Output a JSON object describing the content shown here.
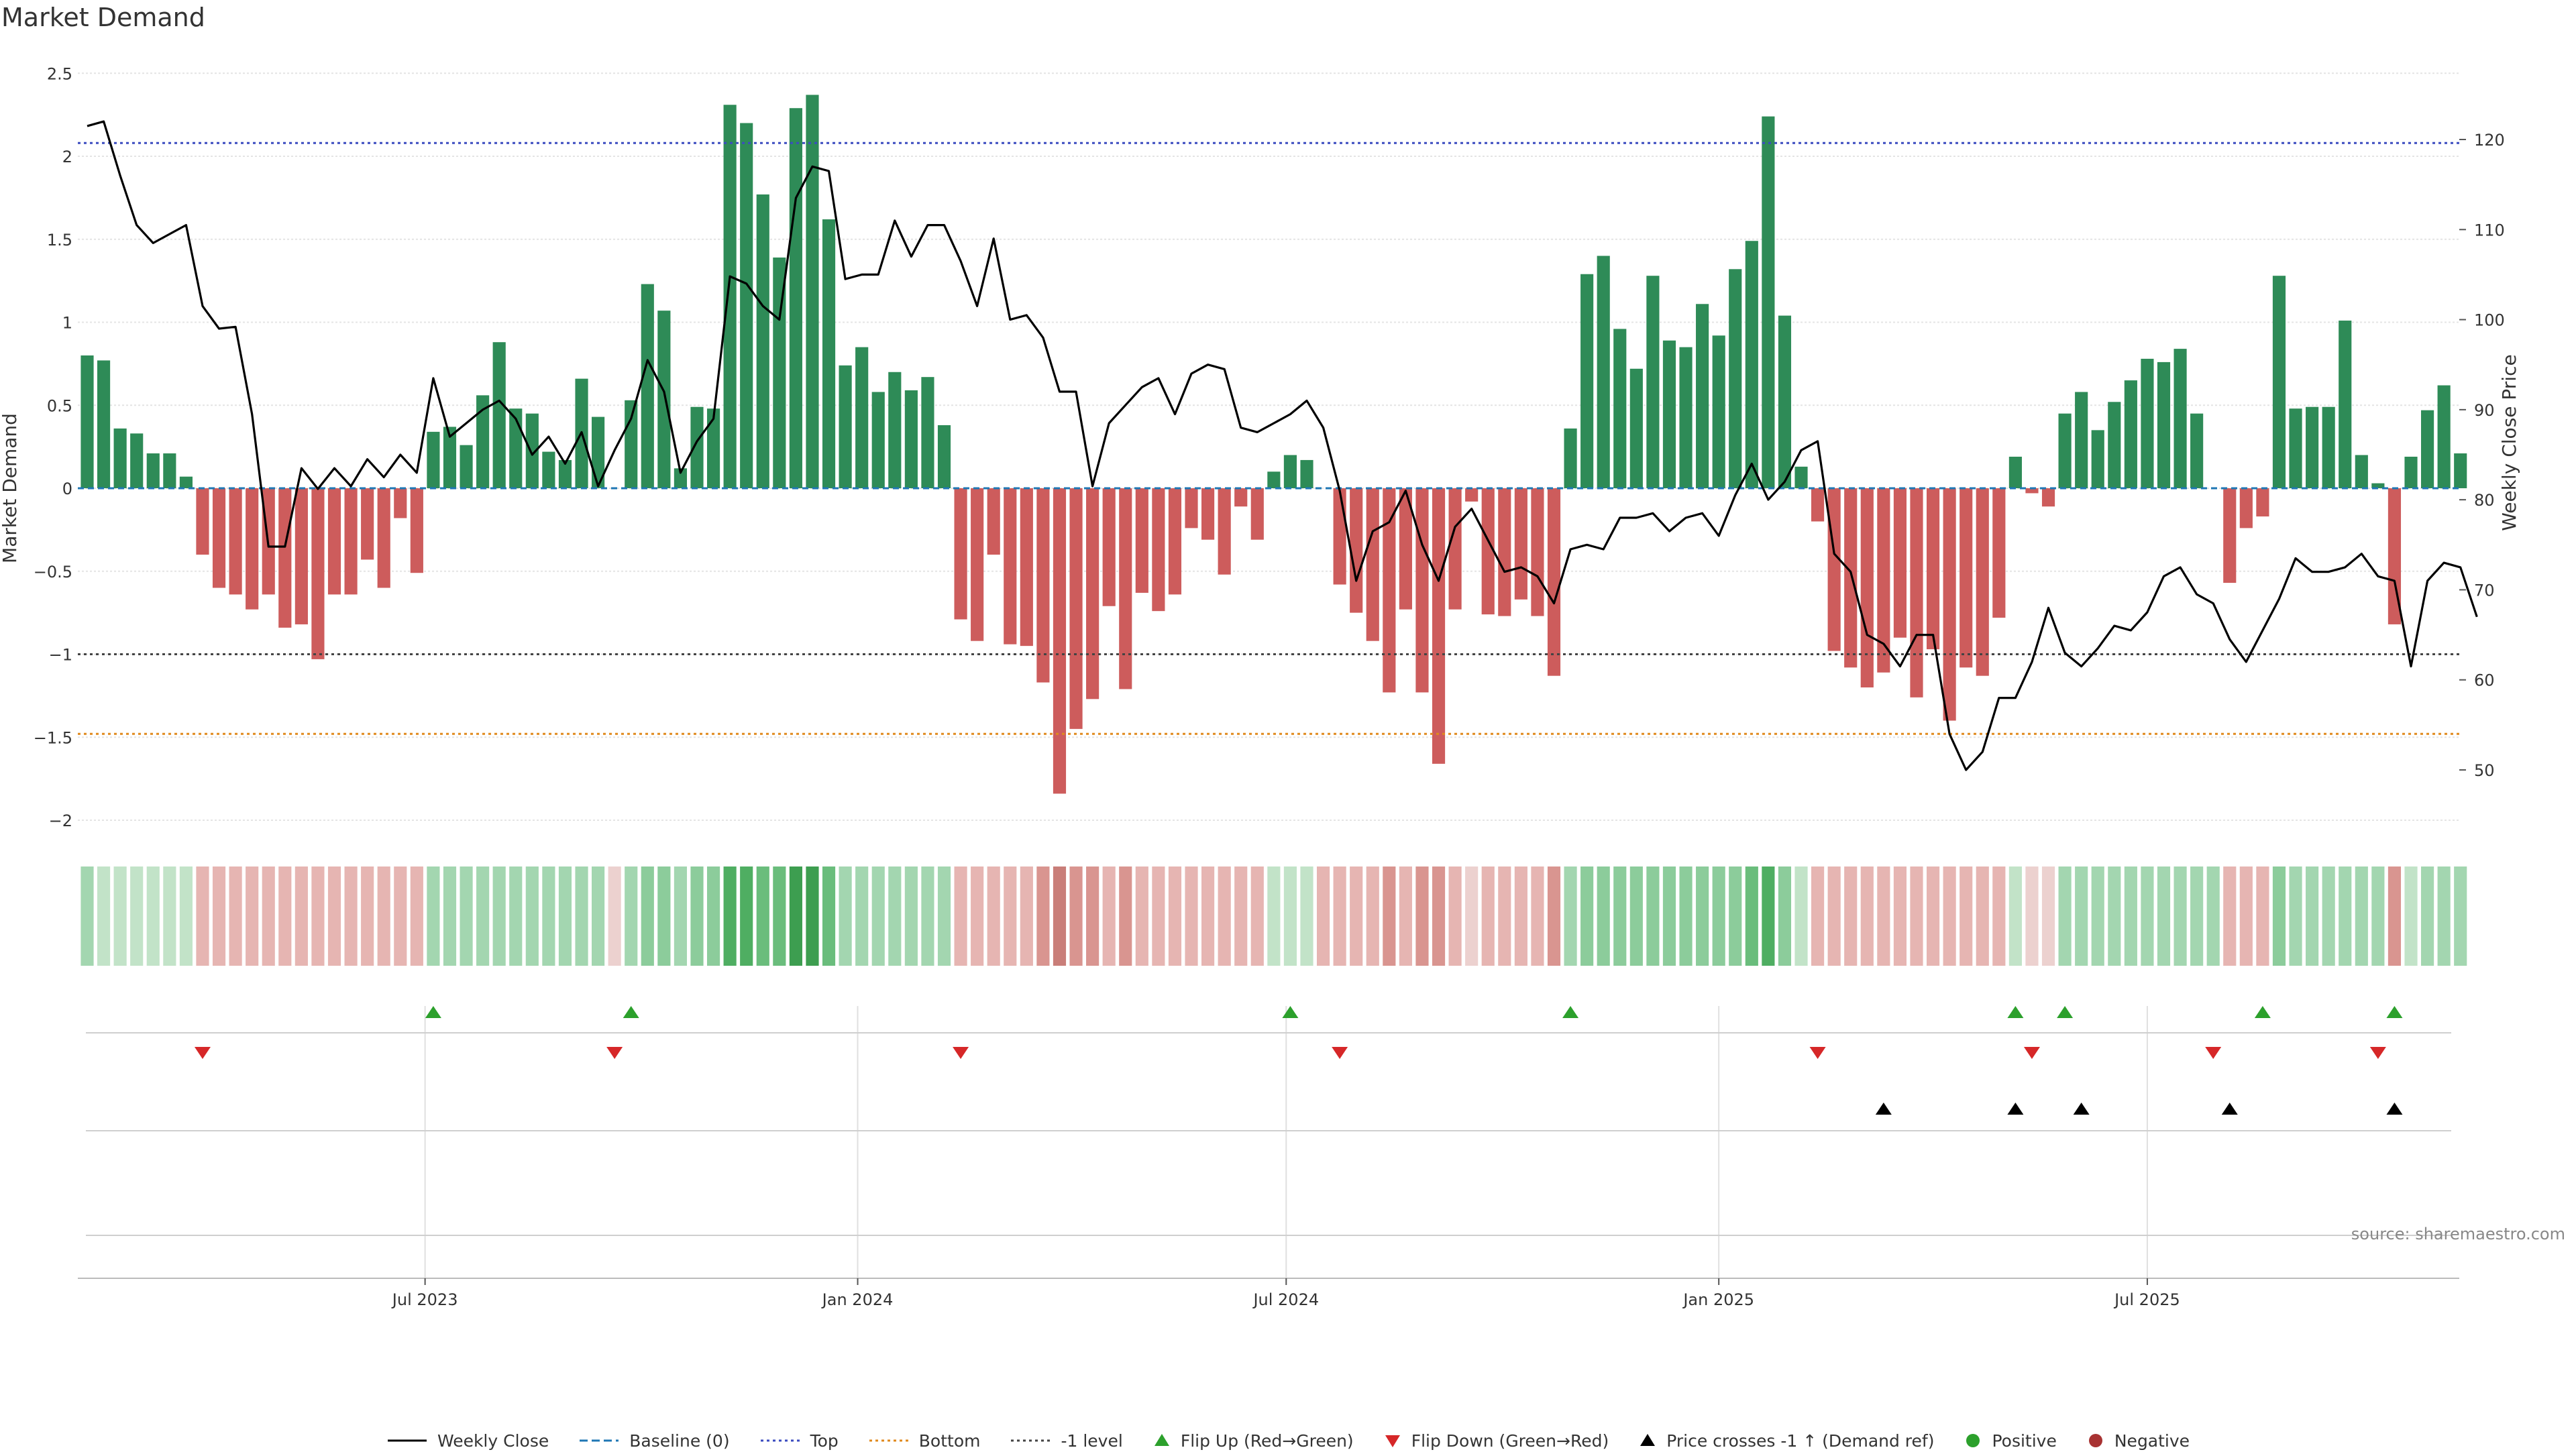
{
  "page": {
    "title": "Market Demand",
    "source": "source: sharemaestro.com"
  },
  "legend": [
    {
      "label": "Weekly Close",
      "kind": "line-solid",
      "color": "#000000"
    },
    {
      "label": "Baseline (0)",
      "kind": "line-dashed",
      "color": "#1f77b4"
    },
    {
      "label": "Top",
      "kind": "line-dotted",
      "color": "#3b4cc0"
    },
    {
      "label": "Bottom",
      "kind": "line-dotted",
      "color": "#e08a1e"
    },
    {
      "label": "-1 level",
      "kind": "line-dotted",
      "color": "#444444"
    },
    {
      "label": "Flip Up (Red→Green)",
      "kind": "tri-up",
      "color": "#2ca02c"
    },
    {
      "label": "Flip Down (Green→Red)",
      "kind": "tri-down",
      "color": "#d62728"
    },
    {
      "label": "Price crosses -1 ↑ (Demand ref)",
      "kind": "tri-up",
      "color": "#000000"
    },
    {
      "label": "Positive",
      "kind": "dot",
      "color": "#2ca02c"
    },
    {
      "label": "Negative",
      "kind": "dot",
      "color": "#a83232"
    }
  ],
  "chart_data": {
    "type": "bar",
    "title": "Market Demand",
    "xlabel": "",
    "ylabel": "Market Demand",
    "ylabel_right": "Weekly Close Price",
    "ylim": [
      -2.25,
      2.55
    ],
    "ylim_right": [
      42.3,
      127.6
    ],
    "yticks": [
      2.5,
      2,
      1.5,
      1,
      0.5,
      0,
      -0.5,
      -1,
      -1.5,
      -2
    ],
    "ytick_labels": [
      "2.5",
      "2",
      "1.5",
      "1",
      "0.5",
      "0",
      "−0.5",
      "−1",
      "−1.5",
      "−2"
    ],
    "yticks_right": [
      120,
      110,
      100,
      90,
      80,
      70,
      60,
      50
    ],
    "x_range_weeks": [
      0,
      144
    ],
    "date_ticks": [
      {
        "label": "Jul 2023",
        "week": 20.5
      },
      {
        "label": "Jan 2024",
        "week": 46.75
      },
      {
        "label": "Jul 2024",
        "week": 72.75
      },
      {
        "label": "Jan 2025",
        "week": 99
      },
      {
        "label": "Jul 2025",
        "week": 125
      }
    ],
    "reference_lines": {
      "top": 2.08,
      "bottom": -1.48,
      "minus_one": -1.0,
      "baseline": 0
    },
    "demand": [
      0.8,
      0.77,
      0.36,
      0.33,
      0.21,
      0.21,
      0.07,
      -0.4,
      -0.6,
      -0.64,
      -0.73,
      -0.64,
      -0.84,
      -0.82,
      -1.03,
      -0.64,
      -0.64,
      -0.43,
      -0.6,
      -0.18,
      -0.51,
      0.34,
      0.37,
      0.26,
      0.56,
      0.88,
      0.48,
      0.45,
      0.22,
      0.17,
      0.66,
      0.43,
      0.0,
      0.53,
      1.23,
      1.07,
      0.12,
      0.49,
      0.48,
      2.31,
      2.2,
      1.77,
      1.39,
      2.29,
      2.37,
      1.62,
      0.74,
      0.85,
      0.58,
      0.7,
      0.59,
      0.67,
      0.38,
      -0.79,
      -0.92,
      -0.4,
      -0.94,
      -0.95,
      -1.17,
      -1.84,
      -1.45,
      -1.27,
      -0.71,
      -1.21,
      -0.63,
      -0.74,
      -0.64,
      -0.24,
      -0.31,
      -0.52,
      -0.11,
      -0.31,
      0.1,
      0.2,
      0.17,
      0.0,
      -0.58,
      -0.75,
      -0.92,
      -1.23,
      -0.73,
      -1.23,
      -1.66,
      -0.73,
      -0.08,
      -0.76,
      -0.77,
      -0.67,
      -0.77,
      -1.13,
      0.36,
      1.29,
      1.4,
      0.96,
      0.72,
      1.28,
      0.89,
      0.85,
      1.11,
      0.92,
      1.32,
      1.49,
      2.24,
      1.04,
      0.13,
      -0.2,
      -0.98,
      -1.08,
      -1.2,
      -1.11,
      -0.9,
      -1.26,
      -0.97,
      -1.4,
      -1.08,
      -1.13,
      -0.78,
      0.19,
      -0.03,
      -0.11,
      0.45,
      0.58,
      0.35,
      0.52,
      0.65,
      0.78,
      0.76,
      0.84,
      0.45,
      0.0,
      -0.57,
      -0.24,
      -0.17,
      1.28,
      0.48,
      0.49,
      0.49,
      1.01,
      0.2,
      0.03,
      -0.82,
      0.19,
      0.47,
      0.62,
      0.21
    ],
    "weekly_close": [
      121.5,
      122.0,
      116.0,
      110.5,
      108.5,
      109.5,
      110.5,
      101.5,
      99.0,
      99.2,
      89.5,
      74.8,
      74.8,
      83.5,
      81.2,
      83.5,
      81.5,
      84.5,
      82.5,
      85.0,
      83.0,
      93.5,
      87.0,
      88.5,
      90.0,
      91.0,
      89.0,
      85.0,
      87.0,
      84.0,
      87.5,
      81.5,
      85.5,
      89.0,
      95.5,
      92.0,
      83.0,
      86.5,
      89.0,
      104.8,
      104.0,
      101.5,
      100.0,
      113.5,
      117.0,
      116.5,
      104.5,
      105.0,
      105.0,
      111.0,
      107.0,
      110.5,
      110.5,
      106.5,
      101.5,
      109.0,
      100.0,
      100.5,
      98.0,
      92.0,
      92.0,
      81.5,
      88.5,
      90.5,
      92.5,
      93.5,
      89.5,
      94.0,
      95.0,
      94.5,
      88.0,
      87.5,
      88.5,
      89.5,
      91.0,
      88.0,
      81.0,
      71.0,
      76.5,
      77.5,
      81.0,
      75.0,
      71.0,
      77.0,
      79.0,
      75.5,
      72.0,
      72.5,
      71.5,
      68.5,
      74.5,
      75.0,
      74.5,
      78.0,
      78.0,
      78.5,
      76.5,
      78.0,
      78.5,
      76.0,
      80.5,
      84.0,
      80.0,
      82.0,
      85.5,
      86.5,
      74.0,
      72.0,
      65.0,
      64.0,
      61.5,
      65.0,
      65.0,
      54.0,
      50.0,
      52.0,
      58.0,
      58.0,
      62.0,
      68.0,
      63.0,
      61.5,
      63.5,
      66.0,
      65.5,
      67.5,
      71.5,
      72.5,
      69.5,
      68.5,
      64.5,
      62.0,
      65.5,
      69.0,
      73.5,
      72.0,
      72.0,
      72.5,
      74.0,
      71.5,
      71.0,
      61.5,
      71.0,
      73.0,
      72.5,
      67.0
    ],
    "heat_colors": [
      "#a3d6b0",
      "#c2e3c8",
      "#c2e3c8",
      "#c2e3c8",
      "#c2e3c8",
      "#c2e3c8",
      "#c2e3c8",
      "#e6b5b2",
      "#e6b5b2",
      "#e6b5b2",
      "#e6b5b2",
      "#e6b5b2",
      "#e6b5b2",
      "#e6b5b2",
      "#e6b5b2",
      "#e6b5b2",
      "#e6b5b2",
      "#e6b5b2",
      "#e6b5b2",
      "#e6b5b2",
      "#e6b5b2",
      "#a3d6b0",
      "#a3d6b0",
      "#a3d6b0",
      "#a3d6b0",
      "#a3d6b0",
      "#a3d6b0",
      "#a3d6b0",
      "#a3d6b0",
      "#a3d6b0",
      "#a3d6b0",
      "#a3d6b0",
      "#ecd1cf",
      "#a3d6b0",
      "#8ccc9b",
      "#8ccc9b",
      "#a3d6b0",
      "#8ccc9b",
      "#8ccc9b",
      "#4fae62",
      "#4fae62",
      "#6abd7c",
      "#6abd7c",
      "#3d9e50",
      "#3d9e50",
      "#6abd7c",
      "#a3d6b0",
      "#a3d6b0",
      "#a3d6b0",
      "#a3d6b0",
      "#a3d6b0",
      "#a3d6b0",
      "#a3d6b0",
      "#e6b5b2",
      "#e6b5b2",
      "#e6b5b2",
      "#e6b5b2",
      "#e6b5b2",
      "#d99590",
      "#c97e79",
      "#d99590",
      "#d99590",
      "#e6b5b2",
      "#d99590",
      "#e6b5b2",
      "#e6b5b2",
      "#e6b5b2",
      "#e6b5b2",
      "#e6b5b2",
      "#e6b5b2",
      "#e6b5b2",
      "#e6b5b2",
      "#c2e3c8",
      "#c2e3c8",
      "#c2e3c8",
      "#e6b5b2",
      "#e6b5b2",
      "#e6b5b2",
      "#e6b5b2",
      "#d99590",
      "#e6b5b2",
      "#d99590",
      "#d99590",
      "#e6b5b2",
      "#ecd1cf",
      "#e6b5b2",
      "#e6b5b2",
      "#e6b5b2",
      "#e6b5b2",
      "#d99590",
      "#a3d6b0",
      "#8ccc9b",
      "#8ccc9b",
      "#8ccc9b",
      "#8ccc9b",
      "#8ccc9b",
      "#8ccc9b",
      "#8ccc9b",
      "#8ccc9b",
      "#8ccc9b",
      "#8ccc9b",
      "#6abd7c",
      "#4fae62",
      "#8ccc9b",
      "#c2e3c8",
      "#e6b5b2",
      "#e6b5b2",
      "#e6b5b2",
      "#e6b5b2",
      "#e6b5b2",
      "#e6b5b2",
      "#e6b5b2",
      "#e6b5b2",
      "#e6b5b2",
      "#e6b5b2",
      "#e6b5b2",
      "#e6b5b2",
      "#c2e3c8",
      "#ecd1cf",
      "#ecd1cf",
      "#a3d6b0",
      "#a3d6b0",
      "#a3d6b0",
      "#a3d6b0",
      "#a3d6b0",
      "#a3d6b0",
      "#a3d6b0",
      "#a3d6b0",
      "#a3d6b0",
      "#a3d6b0",
      "#e6b5b2",
      "#e6b5b2",
      "#e6b5b2",
      "#8ccc9b",
      "#a3d6b0",
      "#a3d6b0",
      "#a3d6b0",
      "#a3d6b0",
      "#a3d6b0",
      "#a3d6b0",
      "#d99590",
      "#c2e3c8",
      "#a3d6b0",
      "#a3d6b0",
      "#a3d6b0"
    ],
    "flip_up_weeks": [
      21,
      33,
      73,
      90,
      117,
      120,
      132,
      140
    ],
    "flip_down_weeks": [
      7,
      32,
      53,
      76,
      105,
      118,
      129,
      139
    ],
    "price_cross_up_weeks": [
      109,
      117,
      121,
      130,
      140
    ],
    "colors": {
      "positive": "#2e8b57",
      "negative": "#cd5c5c",
      "price": "#000000",
      "top": "#3b4cc0",
      "bottom": "#e08a1e",
      "minus_one": "#444444",
      "baseline": "#1f77b4",
      "flip_up": "#2ca02c",
      "flip_down": "#d62728",
      "cross": "#000000"
    }
  }
}
